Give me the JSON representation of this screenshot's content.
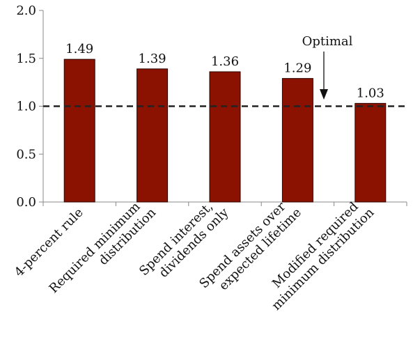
{
  "chart_data": {
    "type": "bar",
    "categories": [
      [
        "4-percent rule"
      ],
      [
        "Required minimum",
        "distribution"
      ],
      [
        "Spend interest,",
        "dividends only"
      ],
      [
        "Spend assets over",
        "expected lifetime"
      ],
      [
        "Modified required",
        "minimum distribution"
      ]
    ],
    "values": [
      1.49,
      1.39,
      1.36,
      1.29,
      1.03
    ],
    "data_labels": [
      "1.49",
      "1.39",
      "1.36",
      "1.29",
      "1.03"
    ],
    "ylim": [
      0,
      2.0
    ],
    "yticks": [
      {
        "value": 0.0,
        "label": "0.0"
      },
      {
        "value": 0.5,
        "label": "0.5"
      },
      {
        "value": 1.0,
        "label": "1.0"
      },
      {
        "value": 1.5,
        "label": "1.5"
      },
      {
        "value": 2.0,
        "label": "2.0"
      }
    ],
    "reference_line": {
      "value": 1.0,
      "style": "dashed"
    },
    "annotation": {
      "text": "Optimal",
      "arrow": "down"
    },
    "bar_color": "#8b1200",
    "grid": false,
    "legend": "none"
  }
}
